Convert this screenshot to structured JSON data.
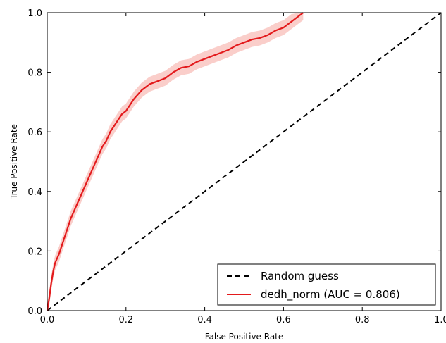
{
  "chart_data": {
    "type": "line",
    "title": "",
    "xlabel": "False Positive Rate",
    "ylabel": "True Positive Rate",
    "xlim": [
      0.0,
      1.0
    ],
    "ylim": [
      0.0,
      1.0
    ],
    "xticks": [
      "0.0",
      "0.2",
      "0.4",
      "0.6",
      "0.8",
      "1.0"
    ],
    "yticks": [
      "0.0",
      "0.2",
      "0.4",
      "0.6",
      "0.8",
      "1.0"
    ],
    "grid": false,
    "legend_position": "bottom-right",
    "series": [
      {
        "name": "Random guess",
        "style": "dashed",
        "color": "#000000",
        "x": [
          0.0,
          1.0
        ],
        "y": [
          0.0,
          1.0
        ]
      },
      {
        "name": "dedh_norm (AUC = 0.806)",
        "style": "solid",
        "color": "#e31a1c",
        "band_color": "#f9c9c4",
        "band_halfwidth": 0.025,
        "x": [
          0.0,
          0.005,
          0.01,
          0.015,
          0.02,
          0.03,
          0.04,
          0.05,
          0.06,
          0.07,
          0.08,
          0.09,
          0.1,
          0.11,
          0.12,
          0.13,
          0.14,
          0.15,
          0.16,
          0.17,
          0.18,
          0.19,
          0.2,
          0.22,
          0.24,
          0.26,
          0.28,
          0.3,
          0.32,
          0.34,
          0.36,
          0.38,
          0.4,
          0.42,
          0.44,
          0.46,
          0.48,
          0.5,
          0.52,
          0.54,
          0.56,
          0.58,
          0.6,
          0.62,
          0.64,
          0.65
        ],
        "y": [
          0.0,
          0.04,
          0.09,
          0.13,
          0.16,
          0.19,
          0.23,
          0.27,
          0.31,
          0.34,
          0.37,
          0.4,
          0.43,
          0.46,
          0.49,
          0.52,
          0.55,
          0.57,
          0.6,
          0.62,
          0.64,
          0.66,
          0.67,
          0.71,
          0.74,
          0.76,
          0.77,
          0.78,
          0.8,
          0.815,
          0.82,
          0.835,
          0.845,
          0.855,
          0.865,
          0.875,
          0.89,
          0.9,
          0.91,
          0.915,
          0.925,
          0.94,
          0.95,
          0.97,
          0.99,
          1.0
        ]
      }
    ]
  }
}
